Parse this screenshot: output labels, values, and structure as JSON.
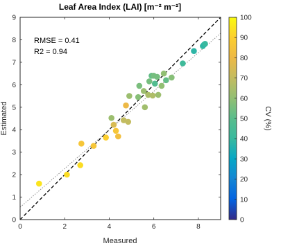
{
  "chart_data": {
    "type": "scatter",
    "title": "Leaf Area Index (LAI) [m⁻² m⁻²]",
    "xlabel": "Measured",
    "ylabel": "Estimated",
    "xlim": [
      0,
      9
    ],
    "ylim": [
      0,
      9
    ],
    "xticks": [
      0,
      2,
      4,
      6,
      8
    ],
    "yticks": [
      0,
      1,
      2,
      3,
      4,
      5,
      6,
      7,
      8,
      9
    ],
    "grid": false,
    "annotations": [
      "RMSE = 0.41",
      "R2 = 0.94"
    ],
    "colorbar": {
      "label": "CV (%)",
      "min": 0,
      "max": 100,
      "ticks": [
        0,
        10,
        20,
        30,
        40,
        50,
        60,
        70,
        80,
        90,
        100
      ],
      "colormap": "parula"
    },
    "reference_lines": [
      {
        "kind": "1:1",
        "style": "dashed",
        "color": "#000000"
      },
      {
        "kind": "regression",
        "style": "dotted",
        "color": "#8c8c8c",
        "slope": 0.86,
        "intercept": 0.55
      }
    ],
    "points": [
      {
        "x": 0.85,
        "y": 1.6,
        "cv": 95
      },
      {
        "x": 2.1,
        "y": 2.0,
        "cv": 93
      },
      {
        "x": 2.7,
        "y": 2.42,
        "cv": 93
      },
      {
        "x": 2.75,
        "y": 3.38,
        "cv": 86
      },
      {
        "x": 3.3,
        "y": 3.28,
        "cv": 86
      },
      {
        "x": 3.85,
        "y": 3.65,
        "cv": 90
      },
      {
        "x": 4.3,
        "y": 3.95,
        "cv": 86
      },
      {
        "x": 4.4,
        "y": 3.7,
        "cv": 83
      },
      {
        "x": 4.2,
        "y": 4.22,
        "cv": 75
      },
      {
        "x": 4.1,
        "y": 4.52,
        "cv": 62
      },
      {
        "x": 4.65,
        "y": 4.42,
        "cv": 70
      },
      {
        "x": 4.75,
        "y": 5.08,
        "cv": 80
      },
      {
        "x": 4.85,
        "y": 4.35,
        "cv": 70
      },
      {
        "x": 4.9,
        "y": 5.5,
        "cv": 62
      },
      {
        "x": 5.3,
        "y": 5.45,
        "cv": 58
      },
      {
        "x": 5.35,
        "y": 5.95,
        "cv": 56
      },
      {
        "x": 5.55,
        "y": 5.72,
        "cv": 62
      },
      {
        "x": 5.6,
        "y": 5.0,
        "cv": 63
      },
      {
        "x": 5.75,
        "y": 5.55,
        "cv": 65
      },
      {
        "x": 5.8,
        "y": 6.15,
        "cv": 55
      },
      {
        "x": 5.9,
        "y": 6.4,
        "cv": 52
      },
      {
        "x": 5.95,
        "y": 5.52,
        "cv": 66
      },
      {
        "x": 6.0,
        "y": 6.4,
        "cv": 55
      },
      {
        "x": 6.05,
        "y": 6.05,
        "cv": 48
      },
      {
        "x": 6.15,
        "y": 6.35,
        "cv": 55
      },
      {
        "x": 6.2,
        "y": 5.55,
        "cv": 62
      },
      {
        "x": 6.35,
        "y": 5.95,
        "cv": 60
      },
      {
        "x": 6.45,
        "y": 6.5,
        "cv": 60
      },
      {
        "x": 6.55,
        "y": 6.2,
        "cv": 52
      },
      {
        "x": 6.8,
        "y": 6.32,
        "cv": 58
      },
      {
        "x": 7.3,
        "y": 6.95,
        "cv": 42
      },
      {
        "x": 7.8,
        "y": 7.5,
        "cv": 38
      },
      {
        "x": 8.2,
        "y": 7.72,
        "cv": 40
      },
      {
        "x": 8.25,
        "y": 7.78,
        "cv": 37
      },
      {
        "x": 8.3,
        "y": 7.82,
        "cv": 40
      }
    ]
  }
}
